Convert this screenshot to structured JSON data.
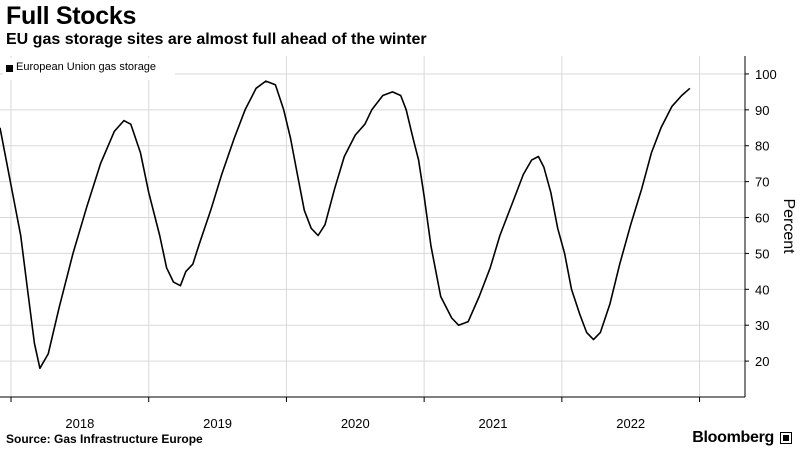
{
  "header": {
    "title": "Full Stocks",
    "subtitle": "EU gas storage sites are almost full ahead of the winter"
  },
  "footer": {
    "source": "Source:  Gas Infrastructure Europe",
    "brand": "Bloomberg"
  },
  "chart_data": {
    "type": "line",
    "ylabel": "Percent",
    "ylim": [
      10,
      105
    ],
    "yticks": [
      20,
      30,
      40,
      50,
      60,
      70,
      80,
      90,
      100
    ],
    "xlim": [
      2017.42,
      2022.83
    ],
    "xticks": [
      {
        "label": "2018",
        "x": 2018.0
      },
      {
        "label": "2019",
        "x": 2019.0
      },
      {
        "label": "2020",
        "x": 2020.0
      },
      {
        "label": "2021",
        "x": 2021.0
      },
      {
        "label": "2022",
        "x": 2022.0
      }
    ],
    "year_boundaries": [
      2017.5,
      2018.5,
      2019.5,
      2020.5,
      2021.5,
      2022.5
    ],
    "grid": true,
    "legend": "top-left",
    "series": [
      {
        "name": "European Union gas storage",
        "color": "#000000",
        "points": [
          [
            2017.42,
            85
          ],
          [
            2017.47,
            75
          ],
          [
            2017.52,
            65
          ],
          [
            2017.57,
            55
          ],
          [
            2017.62,
            40
          ],
          [
            2017.67,
            25
          ],
          [
            2017.71,
            18
          ],
          [
            2017.77,
            22
          ],
          [
            2017.85,
            35
          ],
          [
            2017.95,
            50
          ],
          [
            2018.05,
            63
          ],
          [
            2018.15,
            75
          ],
          [
            2018.25,
            84
          ],
          [
            2018.32,
            87
          ],
          [
            2018.37,
            86
          ],
          [
            2018.44,
            78
          ],
          [
            2018.5,
            67
          ],
          [
            2018.58,
            55
          ],
          [
            2018.63,
            46
          ],
          [
            2018.68,
            42
          ],
          [
            2018.73,
            41
          ],
          [
            2018.77,
            45
          ],
          [
            2018.82,
            47
          ],
          [
            2018.87,
            53
          ],
          [
            2018.95,
            62
          ],
          [
            2019.03,
            72
          ],
          [
            2019.12,
            82
          ],
          [
            2019.2,
            90
          ],
          [
            2019.28,
            96
          ],
          [
            2019.35,
            98
          ],
          [
            2019.42,
            97
          ],
          [
            2019.48,
            90
          ],
          [
            2019.53,
            82
          ],
          [
            2019.58,
            72
          ],
          [
            2019.63,
            62
          ],
          [
            2019.68,
            57
          ],
          [
            2019.73,
            55
          ],
          [
            2019.78,
            58
          ],
          [
            2019.85,
            68
          ],
          [
            2019.92,
            77
          ],
          [
            2020.0,
            83
          ],
          [
            2020.07,
            86
          ],
          [
            2020.12,
            90
          ],
          [
            2020.2,
            94
          ],
          [
            2020.27,
            95
          ],
          [
            2020.33,
            94
          ],
          [
            2020.37,
            90
          ],
          [
            2020.42,
            82
          ],
          [
            2020.46,
            76
          ],
          [
            2020.5,
            66
          ],
          [
            2020.55,
            52
          ],
          [
            2020.62,
            38
          ],
          [
            2020.7,
            32
          ],
          [
            2020.75,
            30
          ],
          [
            2020.82,
            31
          ],
          [
            2020.9,
            38
          ],
          [
            2020.98,
            46
          ],
          [
            2021.05,
            55
          ],
          [
            2021.15,
            65
          ],
          [
            2021.22,
            72
          ],
          [
            2021.28,
            76
          ],
          [
            2021.33,
            77
          ],
          [
            2021.37,
            74
          ],
          [
            2021.42,
            67
          ],
          [
            2021.47,
            57
          ],
          [
            2021.52,
            50
          ],
          [
            2021.57,
            40
          ],
          [
            2021.63,
            33
          ],
          [
            2021.68,
            28
          ],
          [
            2021.73,
            26
          ],
          [
            2021.78,
            28
          ],
          [
            2021.85,
            36
          ],
          [
            2021.92,
            47
          ],
          [
            2022.0,
            58
          ],
          [
            2022.08,
            68
          ],
          [
            2022.15,
            78
          ],
          [
            2022.22,
            85
          ],
          [
            2022.3,
            91
          ],
          [
            2022.37,
            94
          ],
          [
            2022.43,
            96
          ]
        ]
      }
    ]
  }
}
